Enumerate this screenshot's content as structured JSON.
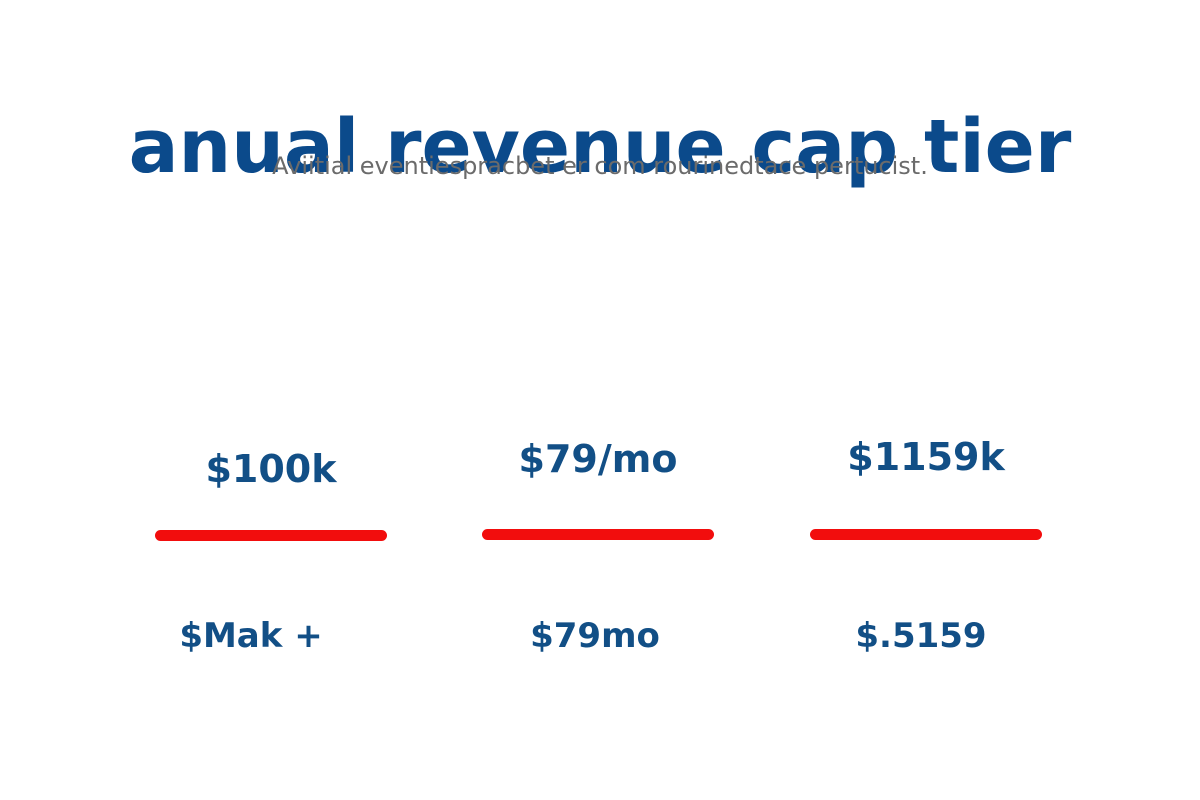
{
  "header": {
    "title": "anual revenue cap tier",
    "subtitle": "Aviitial eventiespracbet er com rourinedtace pertucist."
  },
  "tiers": [
    {
      "price": "$100k",
      "cap": "$Mak +"
    },
    {
      "price": "$79/mo",
      "cap": "$79mo"
    },
    {
      "price": "$1159k",
      "cap": "$.5159"
    }
  ],
  "colors": {
    "title": "#0b4a8b",
    "values": "#124f86",
    "divider": "#f20d0d",
    "subtitle": "#6b6b6b",
    "background": "#ffffff"
  }
}
